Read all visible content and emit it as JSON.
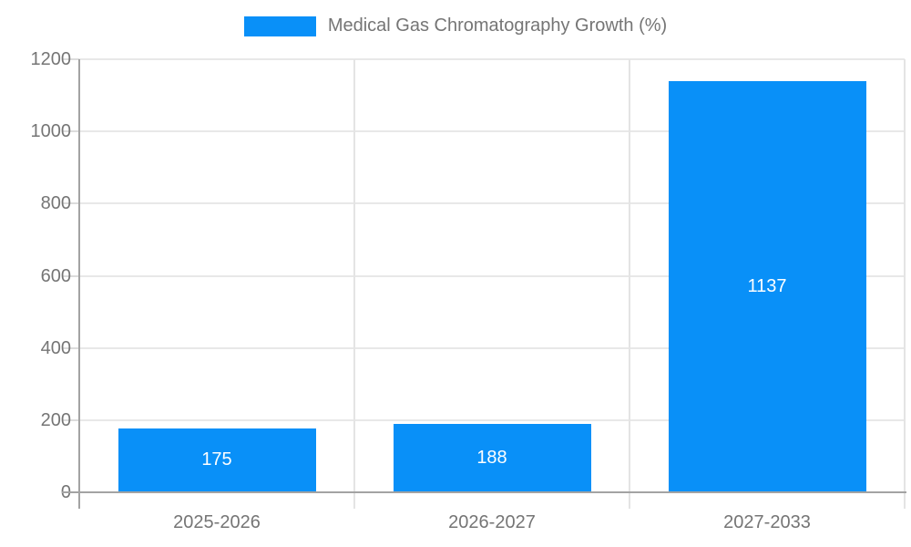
{
  "legend": {
    "label": "Medical Gas Chromatography Growth (%)"
  },
  "colors": {
    "bar": "#0990f8",
    "bar_label": "#ffffff",
    "axis_text": "#757575",
    "axis_line": "#a3a3a3",
    "gridline": "#e8e8e8",
    "background": "#ffffff"
  },
  "chart_data": {
    "type": "bar",
    "title": "Medical Gas Chromatography Growth (%)",
    "categories": [
      "2025-2026",
      "2026-2027",
      "2027-2033"
    ],
    "values": [
      175,
      188,
      1137
    ],
    "xlabel": "",
    "ylabel": "",
    "ylim": [
      0,
      1200
    ],
    "yticks": [
      0,
      200,
      400,
      600,
      800,
      1000,
      1200
    ],
    "grid": true,
    "legend_position": "top-center",
    "bar_value_labels": "inside-white"
  }
}
